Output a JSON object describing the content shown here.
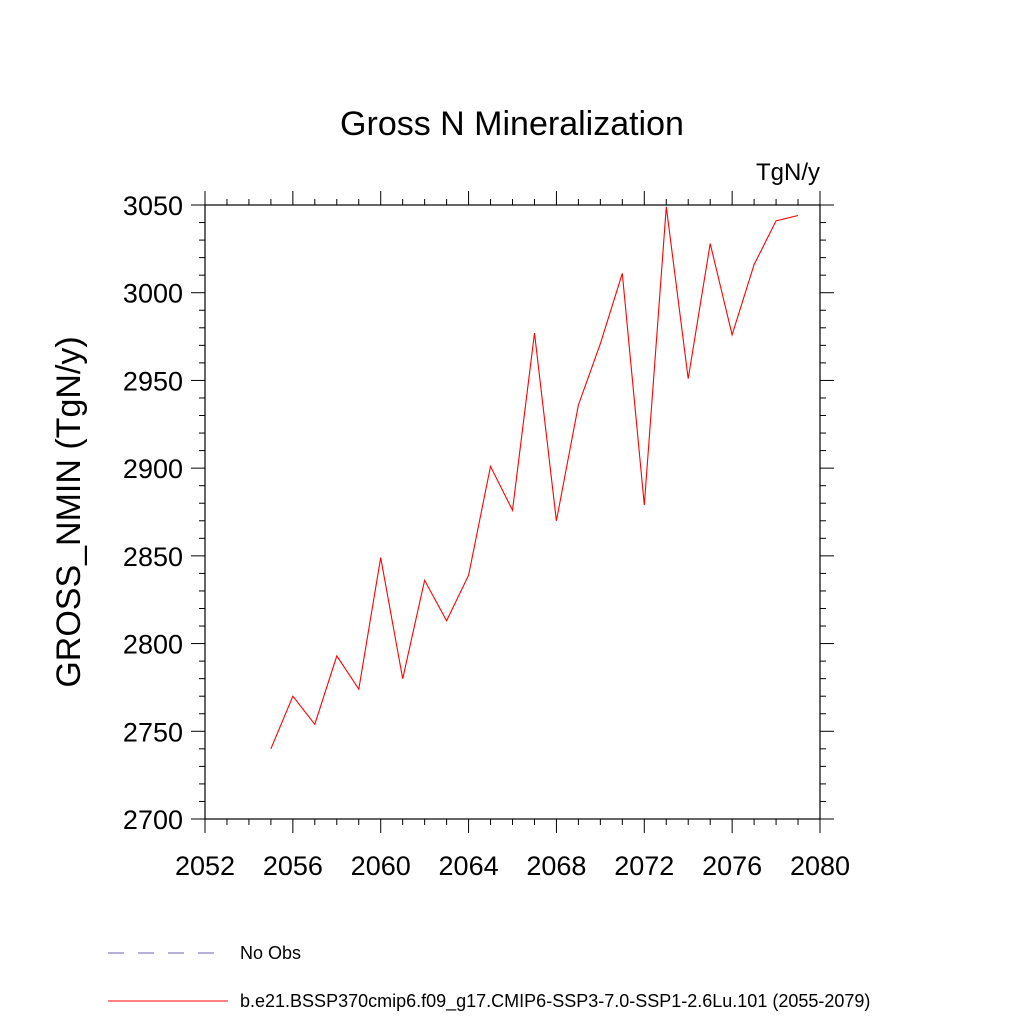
{
  "chart_data": {
    "type": "line",
    "title": "Gross N Mineralization",
    "units": "TgN/y",
    "ylabel": "GROSS_NMIN  (TgN/y)",
    "xlabel": "",
    "xlim": [
      2052,
      2080
    ],
    "ylim": [
      2700,
      3050
    ],
    "x_ticks": [
      2052,
      2056,
      2060,
      2064,
      2068,
      2072,
      2076,
      2080
    ],
    "y_ticks": [
      2700,
      2750,
      2800,
      2850,
      2900,
      2950,
      3000,
      3050
    ],
    "grid": false,
    "series": [
      {
        "name": "b.e21.BSSP370cmip6.f09_g17.CMIP6-SSP3-7.0-SSP1-2.6Lu.101 (2055-2079)",
        "color": "#ff0000",
        "style": "solid",
        "x": [
          2055,
          2056,
          2057,
          2058,
          2059,
          2060,
          2061,
          2062,
          2063,
          2064,
          2065,
          2066,
          2067,
          2068,
          2069,
          2070,
          2071,
          2072,
          2073,
          2074,
          2075,
          2076,
          2077,
          2078,
          2079
        ],
        "values": [
          2740,
          2770,
          2754,
          2793,
          2774,
          2849,
          2780,
          2836,
          2813,
          2839,
          2901,
          2876,
          2977,
          2870,
          2936,
          2971,
          3011,
          2879,
          3049,
          2951,
          3028,
          2976,
          3016,
          3041,
          3044
        ]
      }
    ],
    "legend": [
      {
        "label": "No Obs",
        "color": "#6b5fb5",
        "style": "dashed"
      },
      {
        "label": "b.e21.BSSP370cmip6.f09_g17.CMIP6-SSP3-7.0-SSP1-2.6Lu.101 (2055-2079)",
        "color": "#ff0000",
        "style": "solid"
      }
    ],
    "legend_position": "bottom-left"
  }
}
